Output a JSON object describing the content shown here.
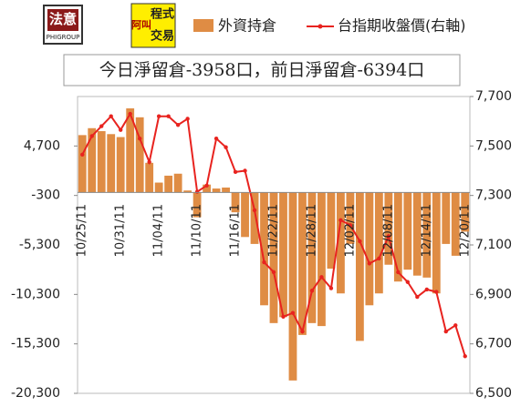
{
  "logos": [
    "法意",
    "PHIGROUP",
    "程式",
    "交易",
    "阿叫"
  ],
  "chart_data": {
    "type": "bar-line",
    "title": "今日淨留倉-3958口，前日淨留倉-6394口",
    "categories": [
      "10/25/11",
      null,
      null,
      null,
      "10/31/11",
      null,
      null,
      null,
      "11/04/11",
      null,
      null,
      null,
      "11/10/11",
      null,
      null,
      null,
      "11/16/11",
      null,
      null,
      null,
      "11/22/11",
      null,
      null,
      null,
      "11/28/11",
      null,
      null,
      null,
      "12/02/11",
      null,
      null,
      null,
      "12/08/11",
      null,
      null,
      null,
      "12/14/11",
      null,
      null,
      null,
      "12/20/11"
    ],
    "series": [
      {
        "name": "外資持倉",
        "color": "#df8c44",
        "type": "bar",
        "values": [
          5800,
          6500,
          6200,
          5900,
          5600,
          8500,
          7600,
          3000,
          1000,
          1700,
          1900,
          200,
          -2500,
          800,
          400,
          500,
          -2000,
          -4500,
          -5200,
          -11400,
          -13200,
          -12600,
          -19000,
          -14400,
          -13200,
          -13500,
          -7700,
          -10200,
          -5200,
          -15000,
          -11400,
          -10200,
          -7300,
          -9000,
          -7800,
          -8400,
          -8600,
          -10200,
          -5200,
          -6394,
          -3958
        ]
      },
      {
        "name": "台指期收盤價(右軸)",
        "color": "#e8231f",
        "type": "line",
        "axis": "y2",
        "values": [
          7465,
          7540,
          7580,
          7620,
          7565,
          7630,
          7530,
          7435,
          7620,
          7620,
          7585,
          7610,
          7315,
          7340,
          7530,
          7495,
          7395,
          7400,
          7240,
          7030,
          6990,
          6810,
          6825,
          6750,
          6915,
          6970,
          6925,
          7200,
          7180,
          7115,
          7025,
          7045,
          7135,
          6990,
          6950,
          6890,
          6920,
          6910,
          6750,
          6775,
          6650
        ]
      }
    ],
    "ylim": [
      -20300,
      9700
    ],
    "yticks": [
      {
        "value": -20300,
        "label": "-20,300"
      },
      {
        "value": -15300,
        "label": "-15,300"
      },
      {
        "value": -10300,
        "label": "-10,300"
      },
      {
        "value": -5300,
        "label": "-5,300"
      },
      -300,
      {
        "value": 4700,
        "label": "4,700"
      }
    ],
    "y2lim": [
      6500,
      7700
    ],
    "y2ticks": [
      {
        "value": 6500,
        "label": "6,500"
      },
      {
        "value": 6700,
        "label": "6,700"
      },
      {
        "value": 6900,
        "label": "6,900"
      },
      {
        "value": 7100,
        "label": "7,100"
      },
      {
        "value": 7300,
        "label": "7,300"
      },
      {
        "value": 7500,
        "label": "7,500"
      },
      {
        "value": 7700,
        "label": "7,700"
      }
    ],
    "grid": false
  }
}
